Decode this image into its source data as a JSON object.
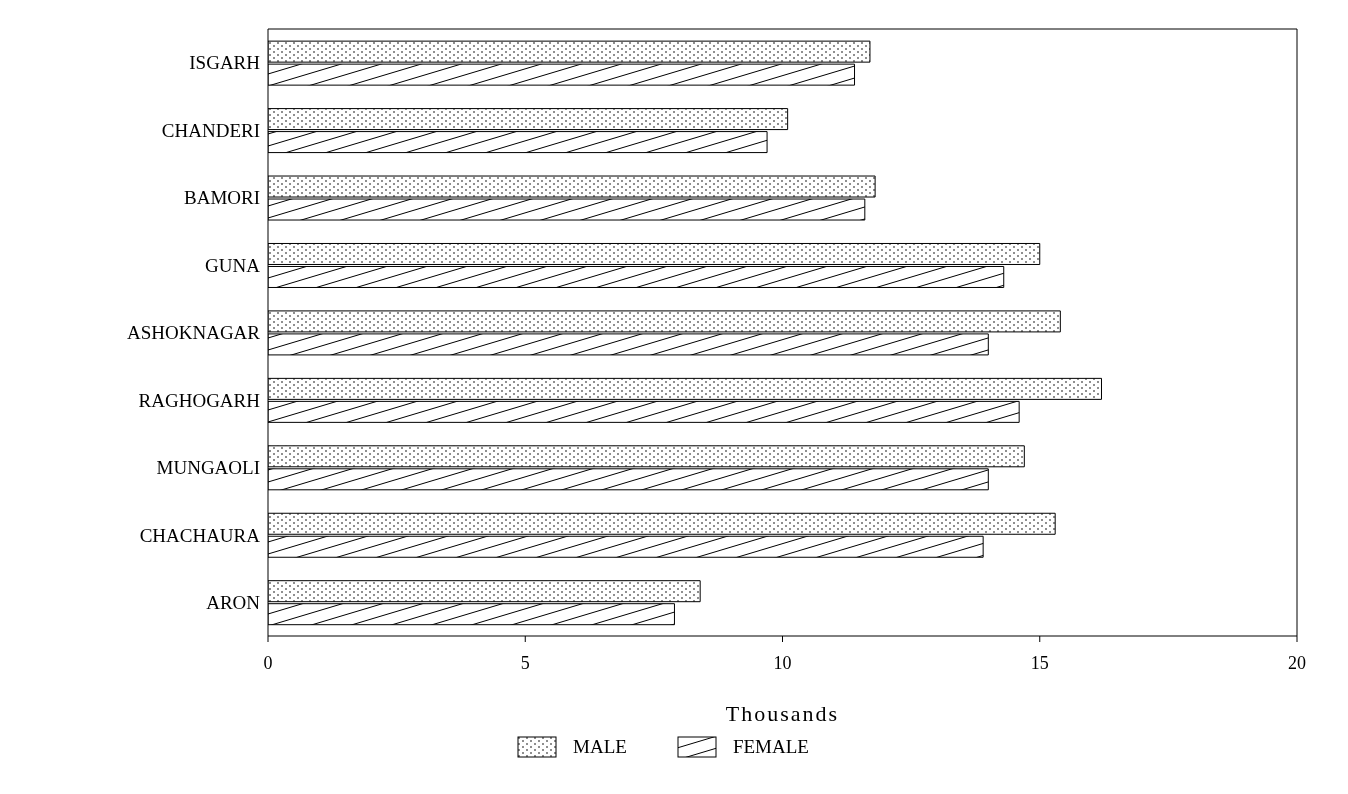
{
  "chart_data": {
    "type": "bar",
    "orientation": "horizontal",
    "xlabel": "Thousands",
    "categories": [
      "ISGARH",
      "CHANDERI",
      "BAMORI",
      "GUNA",
      "ASHOKNAGAR",
      "RAGHOGARH",
      "MUNGAOLI",
      "CHACHAURA",
      "ARON"
    ],
    "series": [
      {
        "name": "MALE",
        "color": "#000000",
        "values": [
          11.7,
          10.1,
          11.8,
          15.0,
          15.4,
          16.2,
          14.7,
          15.3,
          8.4
        ]
      },
      {
        "name": "FEMALE",
        "color": "#000000",
        "values": [
          11.4,
          9.7,
          11.6,
          14.3,
          14.0,
          14.6,
          14.0,
          13.9,
          7.9
        ]
      }
    ],
    "xlim": [
      0,
      20
    ],
    "xticks": [
      0,
      5,
      10,
      15,
      20
    ],
    "legend": "bottom"
  }
}
